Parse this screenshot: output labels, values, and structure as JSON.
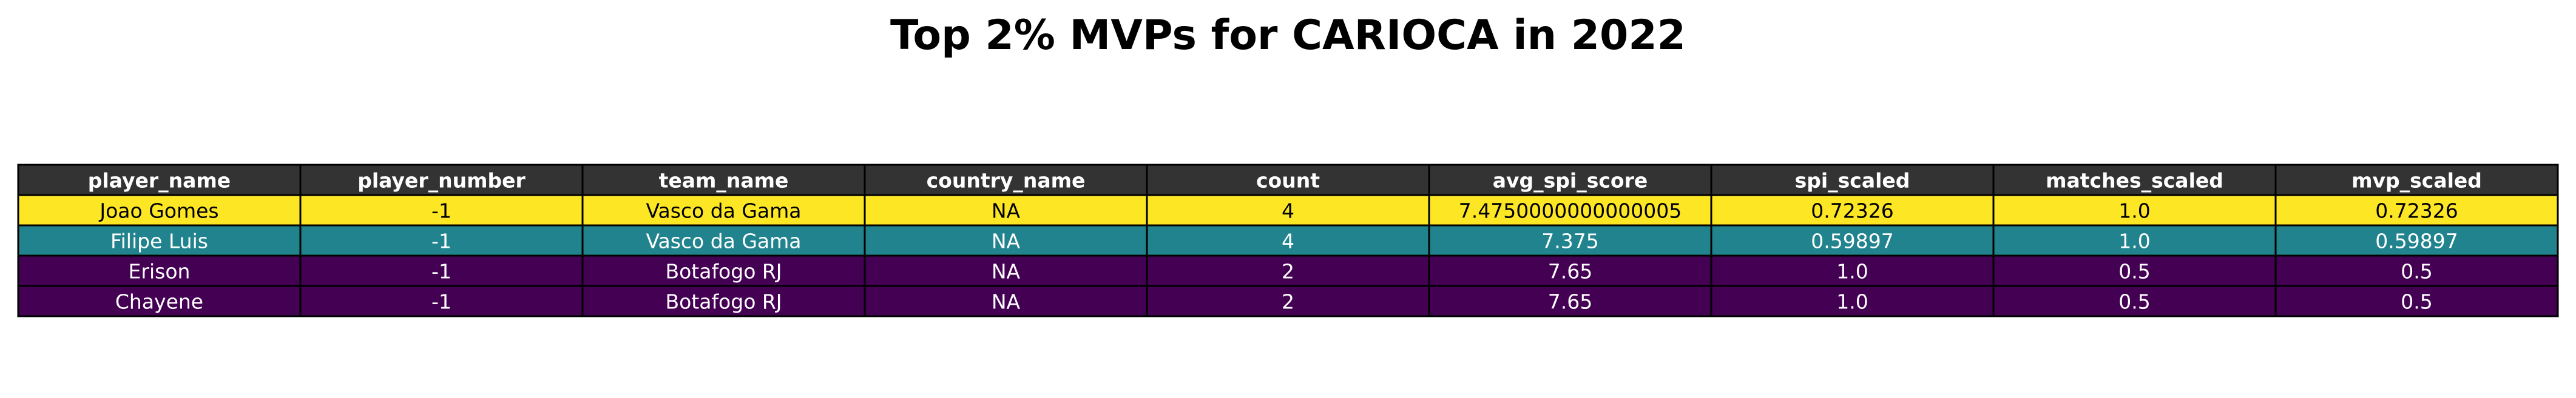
{
  "chart_data": {
    "type": "table",
    "title": "Top 2% MVPs for CARIOCA in 2022",
    "columns": [
      "player_name",
      "player_number",
      "team_name",
      "country_name",
      "count",
      "avg_spi_score",
      "spi_scaled",
      "matches_scaled",
      "mvp_scaled"
    ],
    "rows": [
      [
        "Joao Gomes",
        "-1",
        "Vasco da Gama",
        "NA",
        "4",
        "7.4750000000000005",
        "0.72326",
        "1.0",
        "0.72326"
      ],
      [
        "Filipe Luis",
        "-1",
        "Vasco da Gama",
        "NA",
        "4",
        "7.375",
        "0.59897",
        "1.0",
        "0.59897"
      ],
      [
        "Erison",
        "-1",
        "Botafogo RJ",
        "NA",
        "2",
        "7.65",
        "1.0",
        "0.5",
        "0.5"
      ],
      [
        "Chayene",
        "-1",
        "Botafogo RJ",
        "NA",
        "2",
        "7.65",
        "1.0",
        "0.5",
        "0.5"
      ]
    ],
    "header_color": "#333333",
    "header_text_color": "#ffffff",
    "row_colors": [
      "#fde725",
      "#21838d",
      "#440154",
      "#440154"
    ],
    "row_text_colors": [
      "#000000",
      "#ffffff",
      "#ffffff",
      "#ffffff"
    ],
    "border_color": "#000000"
  }
}
